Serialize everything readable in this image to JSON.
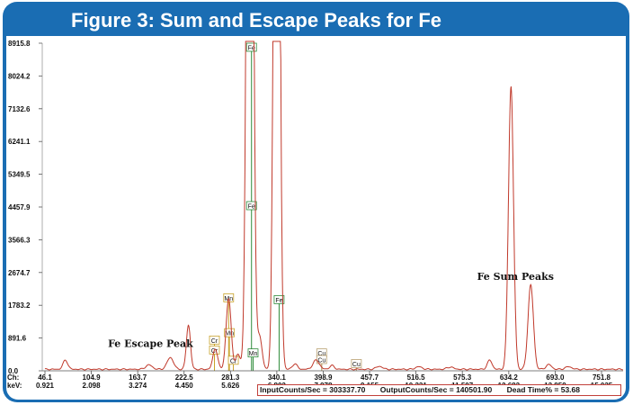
{
  "figure_title": "Figure 3: Sum and Escape Peaks for Fe",
  "status": {
    "input": "InputCounts/Sec = 303337.70",
    "output": "OutputCounts/Sec = 140501.90",
    "dead": "Dead Time% = 53.68"
  },
  "x_axis_labels": {
    "ch": "Ch:",
    "kev": "keV:"
  },
  "colors": {
    "frame": "#1a6db3",
    "spectrum": "#c0392b",
    "fe_marker": "#2e8b3a",
    "cr_mn_marker": "#c8a22a",
    "cu_marker": "#b8a070"
  },
  "chart_data": {
    "type": "line",
    "title": "Figure 3: Sum and Escape Peaks for Fe",
    "ylim": [
      0,
      8915.8
    ],
    "xlim": [
      46.1,
      810
    ],
    "y_ticks": [
      "0.0",
      "891.6",
      "1783.2",
      "2674.7",
      "3566.3",
      "4457.9",
      "5349.5",
      "6241.1",
      "7132.6",
      "8024.2",
      "8915.8"
    ],
    "x_ticks": [
      {
        "ch": "46.1",
        "kev": "0.921"
      },
      {
        "ch": "104.9",
        "kev": "2.098"
      },
      {
        "ch": "163.7",
        "kev": "3.274"
      },
      {
        "ch": "222.5",
        "kev": "4.450"
      },
      {
        "ch": "281.3",
        "kev": "5.626"
      },
      {
        "ch": "340.1",
        "kev": "6.802"
      },
      {
        "ch": "398.9",
        "kev": "7.978"
      },
      {
        "ch": "457.7",
        "kev": "9.155"
      },
      {
        "ch": "516.5",
        "kev": "10.331"
      },
      {
        "ch": "575.3",
        "kev": "11.507"
      },
      {
        "ch": "634.2",
        "kev": "12.683"
      },
      {
        "ch": "693.0",
        "kev": "13.859"
      },
      {
        "ch": "751.8",
        "kev": "15.035"
      }
    ],
    "baseline": 60,
    "peaks": [
      {
        "ch": 72,
        "height": 250,
        "width": 3
      },
      {
        "ch": 178,
        "height": 120,
        "width": 4
      },
      {
        "ch": 205,
        "height": 320,
        "width": 4
      },
      {
        "ch": 228,
        "height": 1200,
        "width": 2.6
      },
      {
        "ch": 262,
        "height": 560,
        "width": 3
      },
      {
        "ch": 279,
        "height": 1920,
        "width": 3.2
      },
      {
        "ch": 291,
        "height": 400,
        "width": 3
      },
      {
        "ch": 306,
        "height": 32000,
        "width": 3.4
      },
      {
        "ch": 318,
        "height": 900,
        "width": 3.2
      },
      {
        "ch": 340,
        "height": 30000,
        "width": 3.2
      },
      {
        "ch": 363,
        "height": 150,
        "width": 3
      },
      {
        "ch": 390,
        "height": 250,
        "width": 4
      },
      {
        "ch": 410,
        "height": 100,
        "width": 3
      },
      {
        "ch": 470,
        "height": 80,
        "width": 4
      },
      {
        "ch": 520,
        "height": 70,
        "width": 4
      },
      {
        "ch": 560,
        "height": 60,
        "width": 4
      },
      {
        "ch": 610,
        "height": 250,
        "width": 3
      },
      {
        "ch": 637,
        "height": 7700,
        "width": 3.2
      },
      {
        "ch": 662,
        "height": 2300,
        "width": 3.4
      },
      {
        "ch": 685,
        "height": 130,
        "width": 3.4
      },
      {
        "ch": 710,
        "height": 70,
        "width": 4
      }
    ],
    "markers": [
      {
        "element": "Fe",
        "ch": 308,
        "value": 8915.8,
        "color": "fe"
      },
      {
        "element": "Fe",
        "ch": 308,
        "value": 4457.9,
        "color": "fe",
        "line": false
      },
      {
        "element": "Fe",
        "ch": 343,
        "value": 1900,
        "color": "fe"
      },
      {
        "element": "Mn",
        "ch": 279,
        "value": 1950,
        "color": "cr"
      },
      {
        "element": "Mn",
        "ch": 280,
        "value": 1000,
        "color": "cr"
      },
      {
        "element": "Mn",
        "ch": 310,
        "value": 450,
        "color": "fe"
      },
      {
        "element": "Cr",
        "ch": 261,
        "value": 800,
        "color": "cr"
      },
      {
        "element": "Cr",
        "ch": 261,
        "value": 530,
        "color": "cr"
      },
      {
        "element": "Cr",
        "ch": 285,
        "value": 250,
        "color": "cr"
      },
      {
        "element": "Cu",
        "ch": 397,
        "value": 450,
        "color": "cu"
      },
      {
        "element": "Cu",
        "ch": 397,
        "value": 270,
        "color": "cu"
      },
      {
        "element": "Cu",
        "ch": 441,
        "value": 160,
        "color": "cu"
      }
    ],
    "annotations": [
      {
        "text": "Fe Escape Peak",
        "ch": 126,
        "value": 650
      },
      {
        "text": "Fe Sum Peaks",
        "ch": 594,
        "value": 2480
      }
    ]
  }
}
